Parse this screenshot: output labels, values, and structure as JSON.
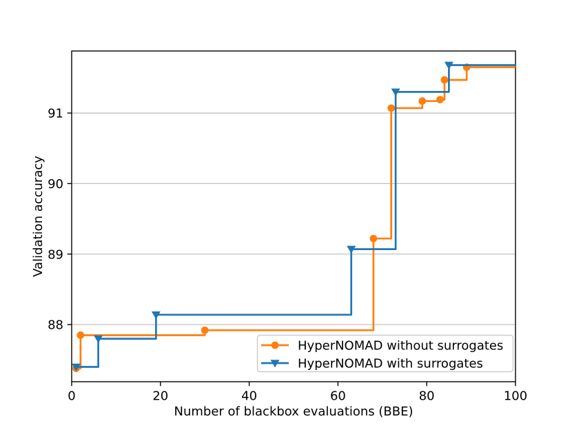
{
  "chart_data": {
    "type": "line",
    "step_style": "post",
    "title": "",
    "xlabel": "Number of blackbox evaluations (BBE)",
    "ylabel": "Validation accuracy",
    "xlim": [
      0,
      100
    ],
    "ylim": [
      87.19,
      91.88
    ],
    "xticks": [
      0,
      20,
      40,
      60,
      80,
      100
    ],
    "yticks": [
      88,
      89,
      90,
      91
    ],
    "grid": "horizontal",
    "colors": {
      "grid": "#c0c0c0",
      "spine": "#000000",
      "text": "#000000",
      "background": "#ffffff"
    },
    "legend": {
      "location": "lower right",
      "border_color": "#cccccc",
      "background": "#ffffff"
    },
    "series": [
      {
        "name": "HyperNOMAD without surrogates",
        "color": "#ff7f0e",
        "marker": "circle",
        "points": [
          [
            1,
            87.38
          ],
          [
            2,
            87.85
          ],
          [
            30,
            87.92
          ],
          [
            68,
            89.22
          ],
          [
            72,
            91.07
          ],
          [
            79,
            91.17
          ],
          [
            83,
            91.19
          ],
          [
            84,
            91.47
          ],
          [
            89,
            91.65
          ]
        ],
        "end_x": 100
      },
      {
        "name": "HyperNOMAD with surrogates",
        "color": "#1f77b4",
        "marker": "triangle-down",
        "points": [
          [
            1,
            87.4
          ],
          [
            6,
            87.8
          ],
          [
            19,
            88.14
          ],
          [
            63,
            89.07
          ],
          [
            73,
            91.3
          ],
          [
            85,
            91.68
          ]
        ],
        "end_x": 100
      }
    ]
  }
}
